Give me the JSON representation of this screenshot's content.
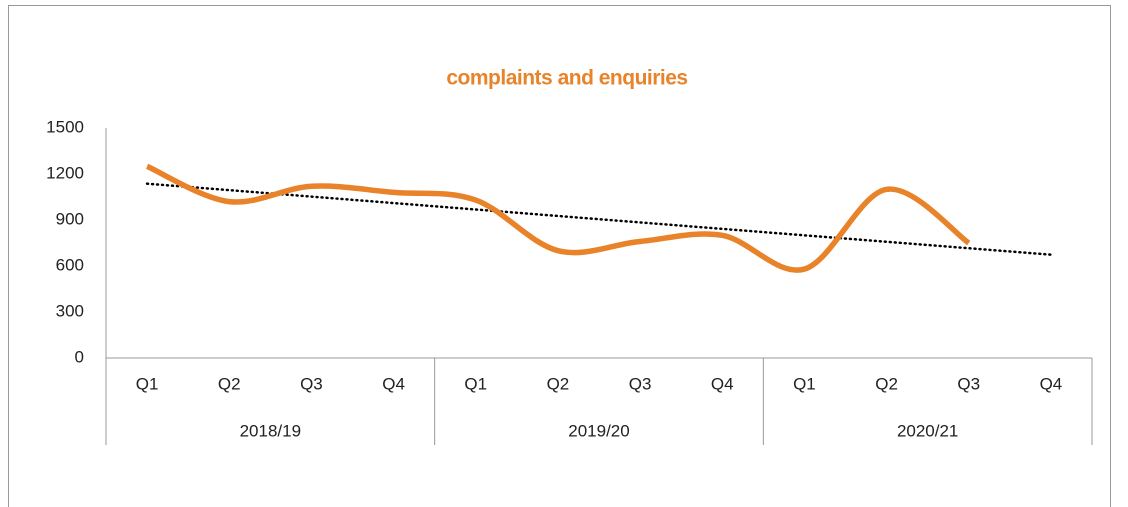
{
  "chart_data": {
    "type": "line",
    "title": "complaints and enquiries",
    "categories": [
      "Q1",
      "Q2",
      "Q3",
      "Q4",
      "Q1",
      "Q2",
      "Q3",
      "Q4",
      "Q1",
      "Q2",
      "Q3",
      "Q4"
    ],
    "groups": [
      "2018/19",
      "2019/20",
      "2020/21"
    ],
    "series": [
      {
        "name": "complaints and enquiries",
        "color": "#e8832a",
        "values": [
          1250,
          1020,
          1120,
          1080,
          1030,
          700,
          760,
          800,
          580,
          1100,
          750,
          null
        ]
      }
    ],
    "trendline": {
      "type": "linear",
      "color": "#000000",
      "style": "dotted"
    },
    "ylim": [
      0,
      1500
    ],
    "yticks": [
      0,
      300,
      600,
      900,
      1200,
      1500
    ],
    "grid": false
  }
}
